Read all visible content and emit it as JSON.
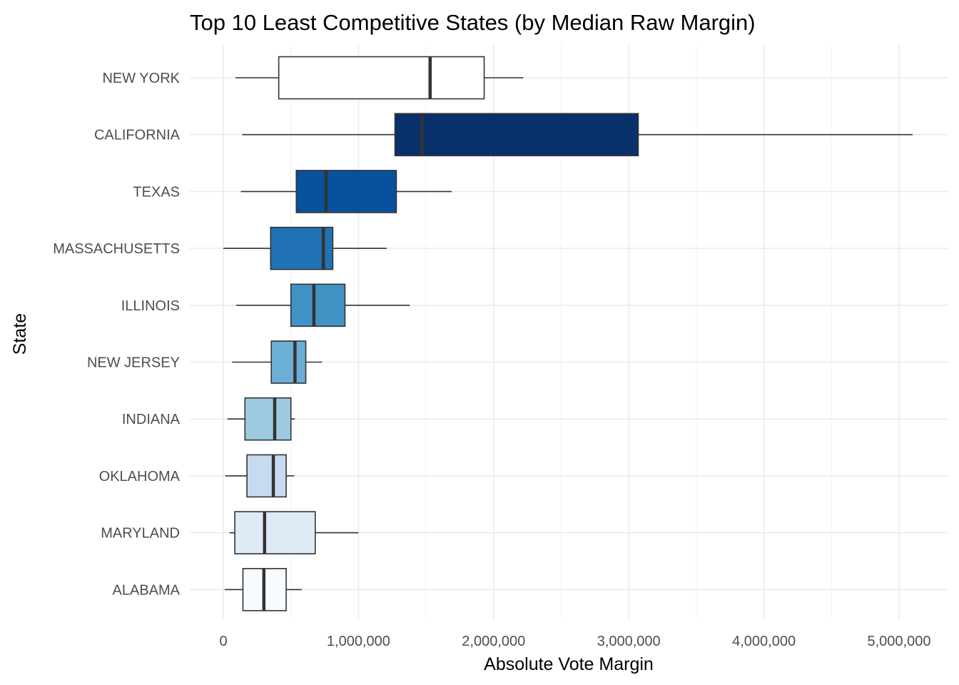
{
  "chart_data": {
    "type": "boxplot",
    "title": "Top 10 Least Competitive States (by Median Raw Margin)",
    "xlabel": "Absolute Vote Margin",
    "ylabel": "State",
    "xlim": [
      0,
      5200000
    ],
    "x_ticks": [
      0,
      1000000,
      2000000,
      3000000,
      4000000,
      5000000
    ],
    "x_tick_labels": [
      "0",
      "1,000,000",
      "2,000,000",
      "3,000,000",
      "4,000,000",
      "5,000,000"
    ],
    "grid": true,
    "legend": "none",
    "categories": [
      "NEW YORK",
      "CALIFORNIA",
      "TEXAS",
      "MASSACHUSETTS",
      "ILLINOIS",
      "NEW JERSEY",
      "INDIANA",
      "OKLAHOMA",
      "MARYLAND",
      "ALABAMA"
    ],
    "boxes": [
      {
        "state": "NEW YORK",
        "min": 90000,
        "q1": 410000,
        "median": 1530000,
        "q3": 1930000,
        "max": 2220000,
        "color": "#ffffff"
      },
      {
        "state": "CALIFORNIA",
        "min": 140000,
        "q1": 1270000,
        "median": 1470000,
        "q3": 3070000,
        "max": 5100000,
        "color": "#08306b"
      },
      {
        "state": "TEXAS",
        "min": 130000,
        "q1": 540000,
        "median": 760000,
        "q3": 1280000,
        "max": 1690000,
        "color": "#08519c"
      },
      {
        "state": "MASSACHUSETTS",
        "min": 0,
        "q1": 350000,
        "median": 740000,
        "q3": 810000,
        "max": 1210000,
        "color": "#2171b5"
      },
      {
        "state": "ILLINOIS",
        "min": 95000,
        "q1": 500000,
        "median": 670000,
        "q3": 900000,
        "max": 1380000,
        "color": "#4292c6"
      },
      {
        "state": "NEW JERSEY",
        "min": 65000,
        "q1": 355000,
        "median": 530000,
        "q3": 610000,
        "max": 730000,
        "color": "#6baed6"
      },
      {
        "state": "INDIANA",
        "min": 30000,
        "q1": 160000,
        "median": 380000,
        "q3": 500000,
        "max": 530000,
        "color": "#9ecae1"
      },
      {
        "state": "OKLAHOMA",
        "min": 15000,
        "q1": 175000,
        "median": 370000,
        "q3": 465000,
        "max": 525000,
        "color": "#c6dbef"
      },
      {
        "state": "MARYLAND",
        "min": 45000,
        "q1": 85000,
        "median": 305000,
        "q3": 680000,
        "max": 1000000,
        "color": "#deebf7"
      },
      {
        "state": "ALABAMA",
        "min": 10000,
        "q1": 145000,
        "median": 300000,
        "q3": 465000,
        "max": 580000,
        "color": "#f7fbff"
      }
    ]
  }
}
